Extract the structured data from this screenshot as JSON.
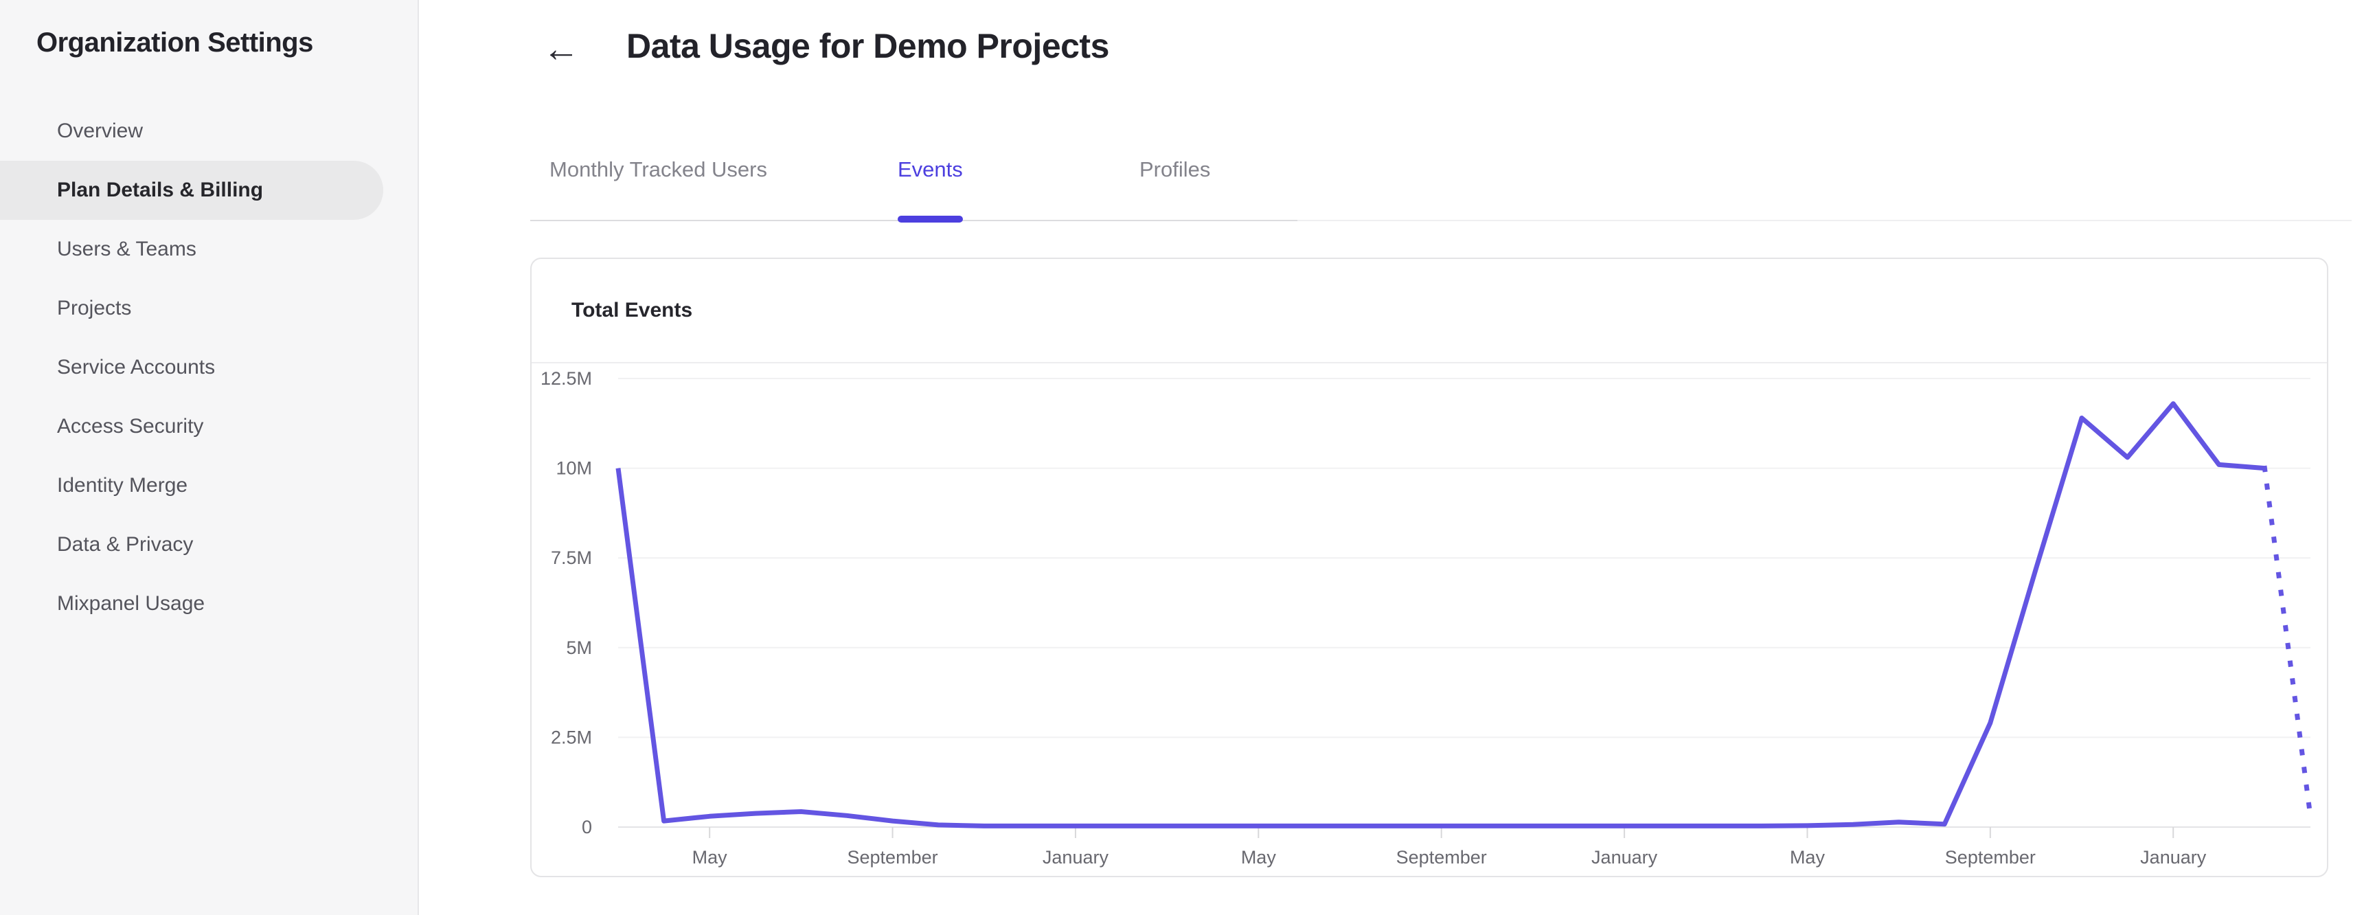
{
  "sidebar": {
    "title": "Organization Settings",
    "items": [
      {
        "label": "Overview",
        "selected": false
      },
      {
        "label": "Plan Details & Billing",
        "selected": true
      },
      {
        "label": "Users & Teams",
        "selected": false
      },
      {
        "label": "Projects",
        "selected": false
      },
      {
        "label": "Service Accounts",
        "selected": false
      },
      {
        "label": "Access Security",
        "selected": false
      },
      {
        "label": "Identity Merge",
        "selected": false
      },
      {
        "label": "Data & Privacy",
        "selected": false
      },
      {
        "label": "Mixpanel Usage",
        "selected": false
      }
    ]
  },
  "header": {
    "back_icon": "←",
    "title": "Data Usage for Demo Projects"
  },
  "tabs": [
    {
      "label": "Monthly Tracked Users",
      "active": false
    },
    {
      "label": "Events",
      "active": true
    },
    {
      "label": "Profiles",
      "active": false
    }
  ],
  "card": {
    "title": "Total Events"
  },
  "colors": {
    "accent": "#4c3fdf",
    "line": "#6355e2",
    "grid": "#f1f1f2",
    "axis": "#e4e4e6",
    "tick": "#d8d8da",
    "axis_label": "#68686f"
  },
  "chart_data": {
    "type": "line",
    "title": "Total Events",
    "series_name": "Total Events",
    "x_unit": "month",
    "n_points": 38,
    "values_millions": [
      10,
      0.17,
      0.3,
      0.38,
      0.43,
      0.32,
      0.17,
      0.06,
      0.03,
      0.03,
      0.03,
      0.03,
      0.03,
      0.03,
      0.03,
      0.03,
      0.03,
      0.03,
      0.03,
      0.03,
      0.03,
      0.03,
      0.03,
      0.03,
      0.03,
      0.03,
      0.04,
      0.07,
      0.14,
      0.08,
      2.9,
      7.2,
      11.4,
      10.3,
      11.8,
      10.1,
      10,
      0.3
    ],
    "solid_until_index": 36,
    "last_segment_style": "dotted",
    "x_tick_indices": [
      2,
      6,
      10,
      14,
      18,
      22,
      26,
      30,
      34
    ],
    "x_tick_labels": [
      "May",
      "September",
      "January",
      "May",
      "September",
      "January",
      "May",
      "September",
      "January"
    ],
    "y_tick_labels": [
      "0",
      "2.5M",
      "5M",
      "7.5M",
      "10M",
      "12.5M"
    ],
    "ylim_millions": [
      0,
      12.5
    ],
    "grid": "horizontal",
    "legend": "none"
  }
}
